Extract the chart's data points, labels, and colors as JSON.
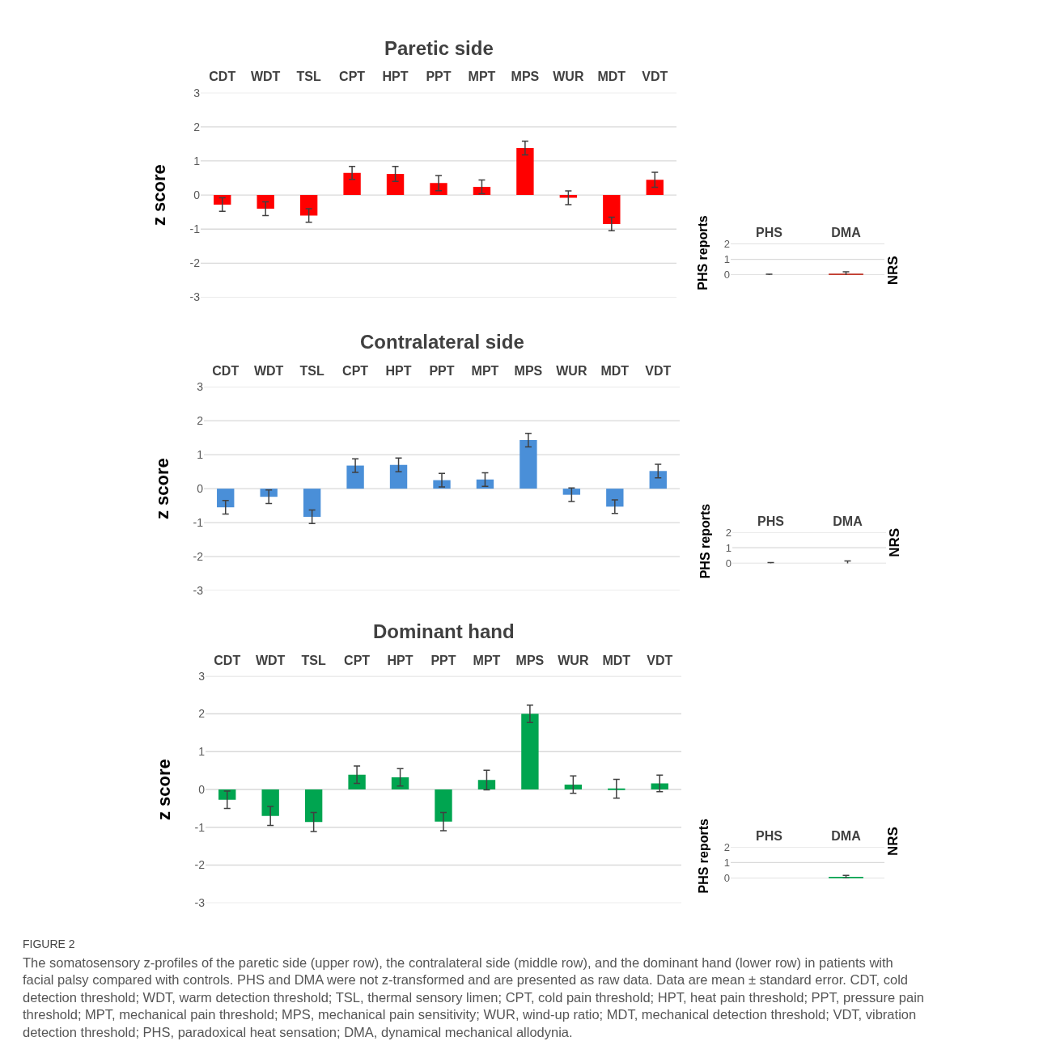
{
  "chart_data": [
    {
      "type": "bar",
      "title": "Paretic side",
      "ylabel": "z score",
      "categories": [
        "CDT",
        "WDT",
        "TSL",
        "CPT",
        "HPT",
        "PPT",
        "MPT",
        "MPS",
        "WUR",
        "MDT",
        "VDT"
      ],
      "series": [
        {
          "color": "#ff0000",
          "values": [
            -0.28,
            -0.4,
            -0.6,
            0.65,
            0.62,
            0.35,
            0.24,
            1.38,
            -0.08,
            -0.85,
            0.45
          ],
          "errors": [
            0.2,
            0.2,
            0.2,
            0.19,
            0.22,
            0.22,
            0.2,
            0.2,
            0.2,
            0.2,
            0.22
          ]
        }
      ],
      "ylim": [
        -3,
        3
      ],
      "yticks": [
        3,
        2,
        1,
        0,
        -1,
        -2,
        -3
      ],
      "grid": "y"
    },
    {
      "type": "bar",
      "ylabel": "PHS reports",
      "y2label": "NRS",
      "categories": [
        "PHS",
        "DMA"
      ],
      "series": [
        {
          "color": "#c0392b",
          "values": [
            0,
            0.05
          ],
          "errors": [
            0.05,
            0.15
          ]
        }
      ],
      "ylim": [
        0,
        2
      ],
      "yticks": [
        0,
        1,
        2
      ],
      "grid": "y"
    },
    {
      "type": "bar",
      "title": "Contralateral side",
      "ylabel": "z score",
      "categories": [
        "CDT",
        "WDT",
        "TSL",
        "CPT",
        "HPT",
        "PPT",
        "MPT",
        "MPS",
        "WUR",
        "MDT",
        "VDT"
      ],
      "series": [
        {
          "color": "#4a8fd8",
          "values": [
            -0.55,
            -0.24,
            -0.83,
            0.68,
            0.7,
            0.25,
            0.27,
            1.43,
            -0.18,
            -0.53,
            0.52
          ],
          "errors": [
            0.2,
            0.2,
            0.2,
            0.2,
            0.2,
            0.2,
            0.2,
            0.2,
            0.2,
            0.2,
            0.2
          ]
        }
      ],
      "ylim": [
        -3,
        3
      ],
      "yticks": [
        3,
        2,
        1,
        0,
        -1,
        -2,
        -3
      ],
      "grid": "y"
    },
    {
      "type": "bar",
      "ylabel": "PHS reports",
      "y2label": "NRS",
      "categories": [
        "PHS",
        "DMA"
      ],
      "series": [
        {
          "color": "#4a8fd8",
          "values": [
            0,
            0
          ],
          "errors": [
            0.05,
            0.15
          ]
        }
      ],
      "ylim": [
        0,
        2
      ],
      "yticks": [
        0,
        1,
        2
      ],
      "grid": "y"
    },
    {
      "type": "bar",
      "title": "Dominant hand",
      "ylabel": "z score",
      "categories": [
        "CDT",
        "WDT",
        "TSL",
        "CPT",
        "HPT",
        "PPT",
        "MPT",
        "MPS",
        "WUR",
        "MDT",
        "VDT"
      ],
      "series": [
        {
          "color": "#00a550",
          "values": [
            -0.27,
            -0.7,
            -0.86,
            0.39,
            0.32,
            -0.85,
            0.25,
            2.0,
            0.13,
            0.02,
            0.16
          ],
          "errors": [
            0.23,
            0.25,
            0.25,
            0.23,
            0.23,
            0.24,
            0.26,
            0.23,
            0.23,
            0.25,
            0.22
          ]
        }
      ],
      "ylim": [
        -3,
        3
      ],
      "yticks": [
        3,
        2,
        1,
        0,
        -1,
        -2,
        -3
      ],
      "grid": "y"
    },
    {
      "type": "bar",
      "ylabel": "PHS reports",
      "y2label": "NRS",
      "categories": [
        "PHS",
        "DMA"
      ],
      "series": [
        {
          "color": "#00a550",
          "values": [
            null,
            0.08
          ],
          "errors": [
            null,
            0.1
          ]
        }
      ],
      "ylim": [
        0,
        2
      ],
      "yticks": [
        0,
        1,
        2
      ],
      "grid": "y",
      "annotations": [
        "FIGURE 2",
        "The somatosensory z-profiles of the paretic side (upper row), the contralateral side (middle row), and the dominant hand (lower row) in patients with facial palsy compared with controls. PHS and DMA were not z-transformed and are presented as raw data. Data are mean ± standard error. CDT, cold detection threshold; WDT, warm detection threshold; TSL, thermal sensory limen; CPT, cold pain threshold; HPT, heat pain threshold; PPT, pressure pain threshold; MPT, mechanical pain threshold; MPS, mechanical pain sensitivity; WUR, wind-up ratio; MDT, mechanical detection threshold; VDT, vibration detection threshold; PHS, paradoxical heat sensation; DMA, dynamical mechanical allodynia."
      ]
    }
  ]
}
